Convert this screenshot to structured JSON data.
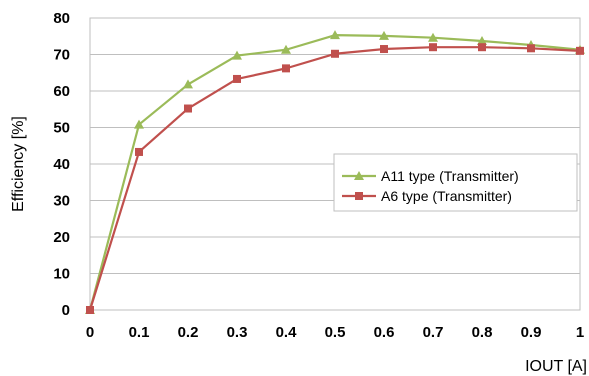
{
  "chart_data": {
    "type": "line",
    "title": "",
    "xlabel": "IOUT  [A]",
    "ylabel": "Efficiency  [%]",
    "xlim": [
      0,
      1
    ],
    "ylim": [
      0,
      80
    ],
    "x_ticks": [
      "0",
      "0.1",
      "0.2",
      "0.3",
      "0.4",
      "0.5",
      "0.6",
      "0.7",
      "0.8",
      "0.9",
      "1"
    ],
    "y_ticks": [
      "0",
      "10",
      "20",
      "30",
      "40",
      "50",
      "60",
      "70",
      "80"
    ],
    "grid": "horizontal",
    "legend_position": "right",
    "x": [
      0,
      0.1,
      0.2,
      0.3,
      0.4,
      0.5,
      0.6,
      0.7,
      0.8,
      0.9,
      1.0
    ],
    "series": [
      {
        "name": "A11 type (Transmitter)",
        "color": "#9BBB59",
        "marker": "triangle",
        "values": [
          0,
          50.8,
          61.8,
          69.7,
          71.3,
          75.3,
          75.1,
          74.6,
          73.7,
          72.6,
          71.3
        ]
      },
      {
        "name": "A6 type (Transmitter)",
        "color": "#C0504D",
        "marker": "square",
        "values": [
          0,
          43.3,
          55.2,
          63.3,
          66.2,
          70.2,
          71.5,
          72.0,
          72.0,
          71.7,
          71.0
        ]
      }
    ]
  }
}
